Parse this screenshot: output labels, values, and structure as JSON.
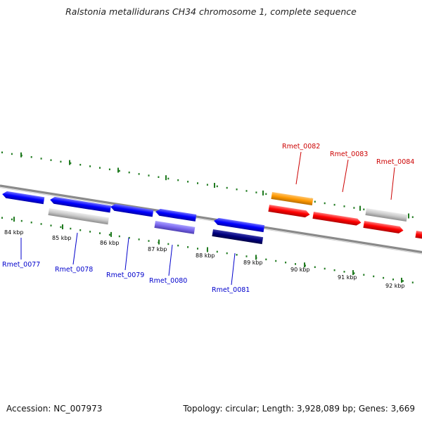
{
  "title": "Ralstonia metallidurans CH34 chromosome 1, complete sequence",
  "footer": {
    "accession": "Accession: NC_007973",
    "summary": "Topology: circular; Length: 3,928,089 bp; Genes: 3,669"
  },
  "colors": {
    "forward_gene": "#0000ff",
    "reverse_gene": "#ff0000",
    "grey_gene": "#c8c8c8",
    "orange_gene": "#ff9900",
    "purple_gene": "#7b68ee",
    "navy_gene": "#00007f",
    "backbone": "#8a8a8a",
    "ticks": "#1f7a1f",
    "forward_label": "#0000cc",
    "reverse_label": "#cc0000"
  },
  "tick_labels": [
    "84 kbp",
    "85 kbp",
    "86 kbp",
    "87 kbp",
    "88 kbp",
    "89 kbp",
    "90 kbp",
    "91 kbp",
    "92 kbp"
  ],
  "gene_labels": {
    "forward": [
      "Rmet_0077",
      "Rmet_0078",
      "Rmet_0079",
      "Rmet_0080",
      "Rmet_0081"
    ],
    "reverse": [
      "Rmet_0082",
      "Rmet_0083",
      "Rmet_0084"
    ]
  }
}
